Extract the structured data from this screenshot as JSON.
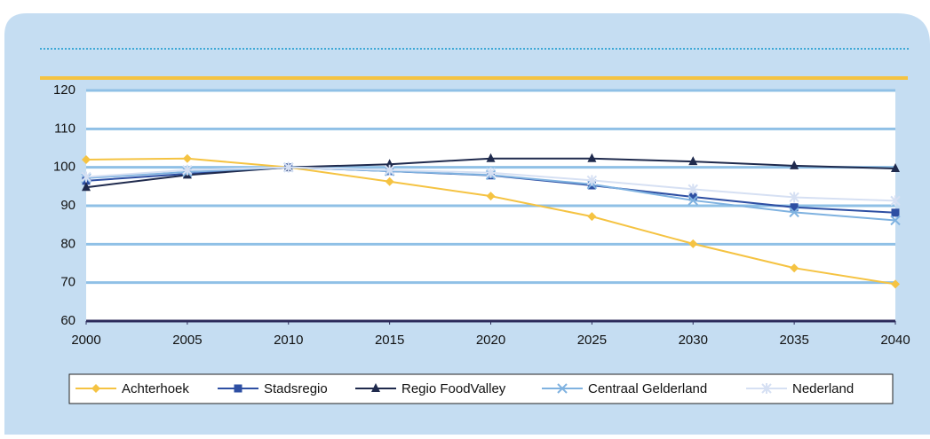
{
  "chart_data": {
    "type": "line",
    "x": [
      2000,
      2005,
      2010,
      2015,
      2020,
      2025,
      2030,
      2035,
      2040
    ],
    "xlim": [
      2000,
      2040
    ],
    "xticks": [
      2000,
      2005,
      2010,
      2015,
      2020,
      2025,
      2030,
      2035,
      2040
    ],
    "ylim": [
      60,
      120
    ],
    "yticks": [
      60,
      70,
      80,
      90,
      100,
      110,
      120
    ],
    "grid": true,
    "legend": "bottom",
    "series": [
      {
        "name": "Achterhoek",
        "color": "#f5c342",
        "marker": "diamond",
        "values": [
          102,
          102.3,
          100,
          96.3,
          92.5,
          87.2,
          80.1,
          73.8,
          69.6
        ]
      },
      {
        "name": "Stadsregio",
        "color": "#2e4fa3",
        "marker": "square",
        "values": [
          96.5,
          98.3,
          100,
          99,
          97.9,
          95.3,
          92.3,
          89.6,
          88.2
        ]
      },
      {
        "name": "Regio FoodValley",
        "color": "#1f2a4d",
        "marker": "triangle",
        "values": [
          94.8,
          98,
          100,
          100.8,
          102.3,
          102.3,
          101.5,
          100.4,
          99.7
        ]
      },
      {
        "name": "Centraal Gelderland",
        "color": "#7fb2e0",
        "marker": "x",
        "values": [
          97.2,
          98.8,
          100,
          99,
          98,
          95.6,
          91.4,
          88.3,
          86.2
        ]
      },
      {
        "name": "Nederland",
        "color": "#d6e0f3",
        "marker": "star",
        "values": [
          97.5,
          99.3,
          100,
          99.3,
          98.6,
          96.6,
          94.3,
          92.2,
          91.3
        ]
      }
    ]
  }
}
